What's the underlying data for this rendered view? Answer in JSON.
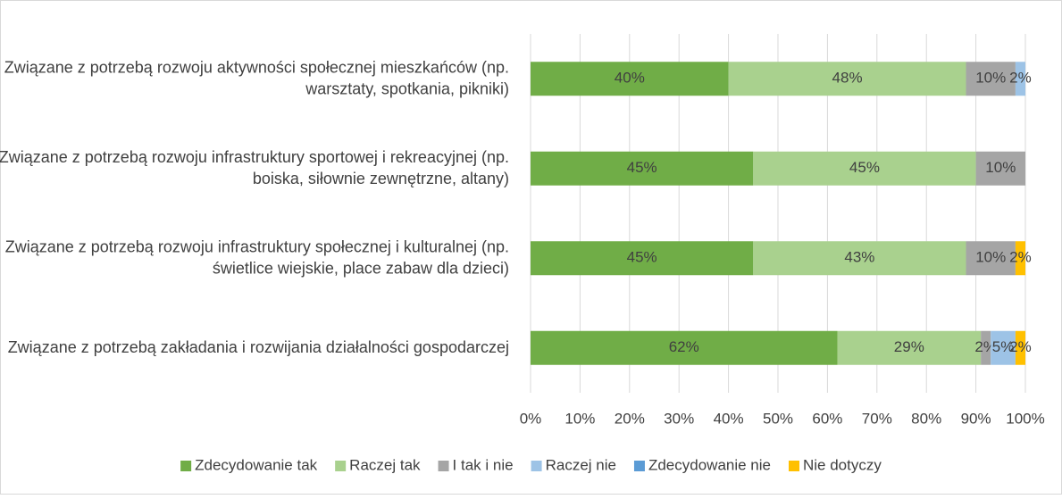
{
  "chart_data": {
    "type": "stacked_barh",
    "categories": [
      "Związane z potrzebą rozwoju aktywności społecznej mieszkańców (np. warsztaty, spotkania, pikniki)",
      "Związane z potrzebą rozwoju infrastruktury sportowej i rekreacyjnej (np. boiska, siłownie zewnętrzne, altany)",
      "Związane z potrzebą rozwoju infrastruktury społecznej i kulturalnej (np. świetlice wiejskie, place zabaw dla dzieci)",
      "Związane z potrzebą zakładania i rozwijania działalności gospodarczej"
    ],
    "series": [
      {
        "name": "Zdecydowanie tak",
        "color": "#70ad47",
        "values": [
          40,
          45,
          45,
          62
        ],
        "value_labels": [
          "40%",
          "45%",
          "45%",
          "62%"
        ]
      },
      {
        "name": "Raczej tak",
        "color": "#a9d18e",
        "values": [
          48,
          45,
          43,
          29
        ],
        "value_labels": [
          "48%",
          "45%",
          "43%",
          "29%"
        ]
      },
      {
        "name": "I tak i nie",
        "color": "#a5a5a5",
        "values": [
          10,
          10,
          10,
          2
        ],
        "value_labels": [
          "10%",
          "10%",
          "10%",
          "2%"
        ]
      },
      {
        "name": "Raczej nie",
        "color": "#9dc3e6",
        "values": [
          2,
          null,
          null,
          5
        ],
        "value_labels": [
          "2%",
          null,
          null,
          "5%"
        ]
      },
      {
        "name": "Zdecydowanie nie",
        "color": "#5b9bd5",
        "values": [
          null,
          null,
          null,
          null
        ],
        "value_labels": [
          null,
          null,
          null,
          null
        ]
      },
      {
        "name": "Nie dotyczy",
        "color": "#ffc000",
        "values": [
          null,
          null,
          2,
          2
        ],
        "value_labels": [
          null,
          null,
          "2%",
          "2%"
        ]
      }
    ],
    "xlim": [
      0,
      100
    ],
    "xticks": [
      {
        "value": 0,
        "label": "0%"
      },
      {
        "value": 10,
        "label": "10%"
      },
      {
        "value": 20,
        "label": "20%"
      },
      {
        "value": 30,
        "label": "30%"
      },
      {
        "value": 40,
        "label": "40%"
      },
      {
        "value": 50,
        "label": "50%"
      },
      {
        "value": 60,
        "label": "60%"
      },
      {
        "value": 70,
        "label": "70%"
      },
      {
        "value": 80,
        "label": "80%"
      },
      {
        "value": 90,
        "label": "90%"
      },
      {
        "value": 100,
        "label": "100%"
      }
    ],
    "grid": true,
    "legend": "bottom"
  }
}
